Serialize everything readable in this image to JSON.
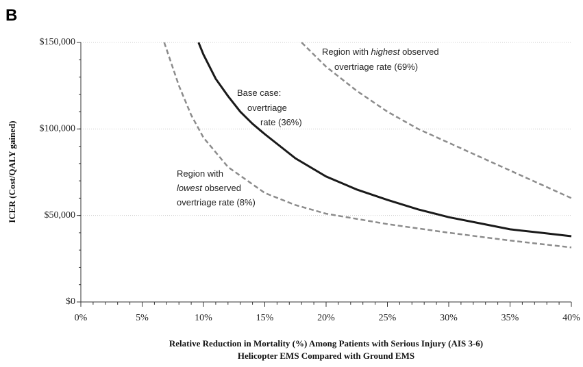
{
  "panel_label": "B",
  "chart_data": {
    "type": "line",
    "y_label": "ICER (Cost/QALY gained)",
    "x_label": [
      "Relative Reduction in Mortality (%) Among Patients with Serious Injury (AIS 3-6)",
      "Helicopter EMS Compared with Ground EMS"
    ],
    "xlim": [
      0,
      40
    ],
    "xticks": [
      {
        "value": 0,
        "label": "0%"
      },
      {
        "value": 5,
        "label": "5%"
      },
      {
        "value": 10,
        "label": "10%"
      },
      {
        "value": 15,
        "label": "15%"
      },
      {
        "value": 20,
        "label": "20%"
      },
      {
        "value": 25,
        "label": "25%"
      },
      {
        "value": 30,
        "label": "30%"
      },
      {
        "value": 35,
        "label": "35%"
      },
      {
        "value": 40,
        "label": "40%"
      }
    ],
    "ylim": [
      0,
      150000
    ],
    "yticks": [
      {
        "value": 0,
        "label": "$0"
      },
      {
        "value": 50000,
        "label": "$50,000"
      },
      {
        "value": 100000,
        "label": "$100,000"
      },
      {
        "value": 150000,
        "label": "$150,000"
      }
    ],
    "grid": true,
    "series": [
      {
        "color": "#1a1a1a",
        "style": "solid",
        "x": [
          9.6,
          10,
          11,
          12,
          13,
          14,
          15,
          17.5,
          20,
          22.5,
          25,
          27.5,
          30,
          32.5,
          35,
          37.5,
          40
        ],
        "values": [
          150000,
          143000,
          129000,
          119000,
          110000,
          103000,
          97000,
          83000,
          72500,
          65000,
          59000,
          53500,
          49000,
          45500,
          42000,
          40000,
          38000
        ]
      },
      {
        "color": "#8c8c8c",
        "style": "dashed",
        "x": [
          6.8,
          8,
          9,
          10,
          12,
          15,
          17.5,
          20,
          25,
          30,
          35,
          40
        ],
        "values": [
          150000,
          125000,
          108000,
          95000,
          78000,
          63000,
          56000,
          51000,
          45000,
          40000,
          35500,
          31500
        ]
      },
      {
        "color": "#8c8c8c",
        "style": "dashed",
        "x": [
          18,
          20,
          22.5,
          25,
          27.5,
          30,
          32.5,
          35,
          37.5,
          40
        ],
        "values": [
          150000,
          136000,
          122000,
          110000,
          100000,
          92000,
          84000,
          76000,
          68000,
          60000
        ]
      }
    ],
    "annotations": [
      [
        [
          {
            "text": "Base case:"
          }
        ],
        [
          {
            "text": "overtriage"
          }
        ],
        [
          {
            "text": "rate (36%)"
          }
        ]
      ],
      [
        [
          {
            "text": "Region with"
          }
        ],
        [
          {
            "text": "lowest",
            "italic": true
          },
          {
            "text": " observed"
          }
        ],
        [
          {
            "text": "overtriage rate (8%)"
          }
        ]
      ],
      [
        [
          {
            "text": "Region with "
          },
          {
            "text": "highest",
            "italic": true
          },
          {
            "text": " observed"
          }
        ],
        [
          {
            "text": "overtriage rate (69%)"
          }
        ]
      ]
    ]
  }
}
